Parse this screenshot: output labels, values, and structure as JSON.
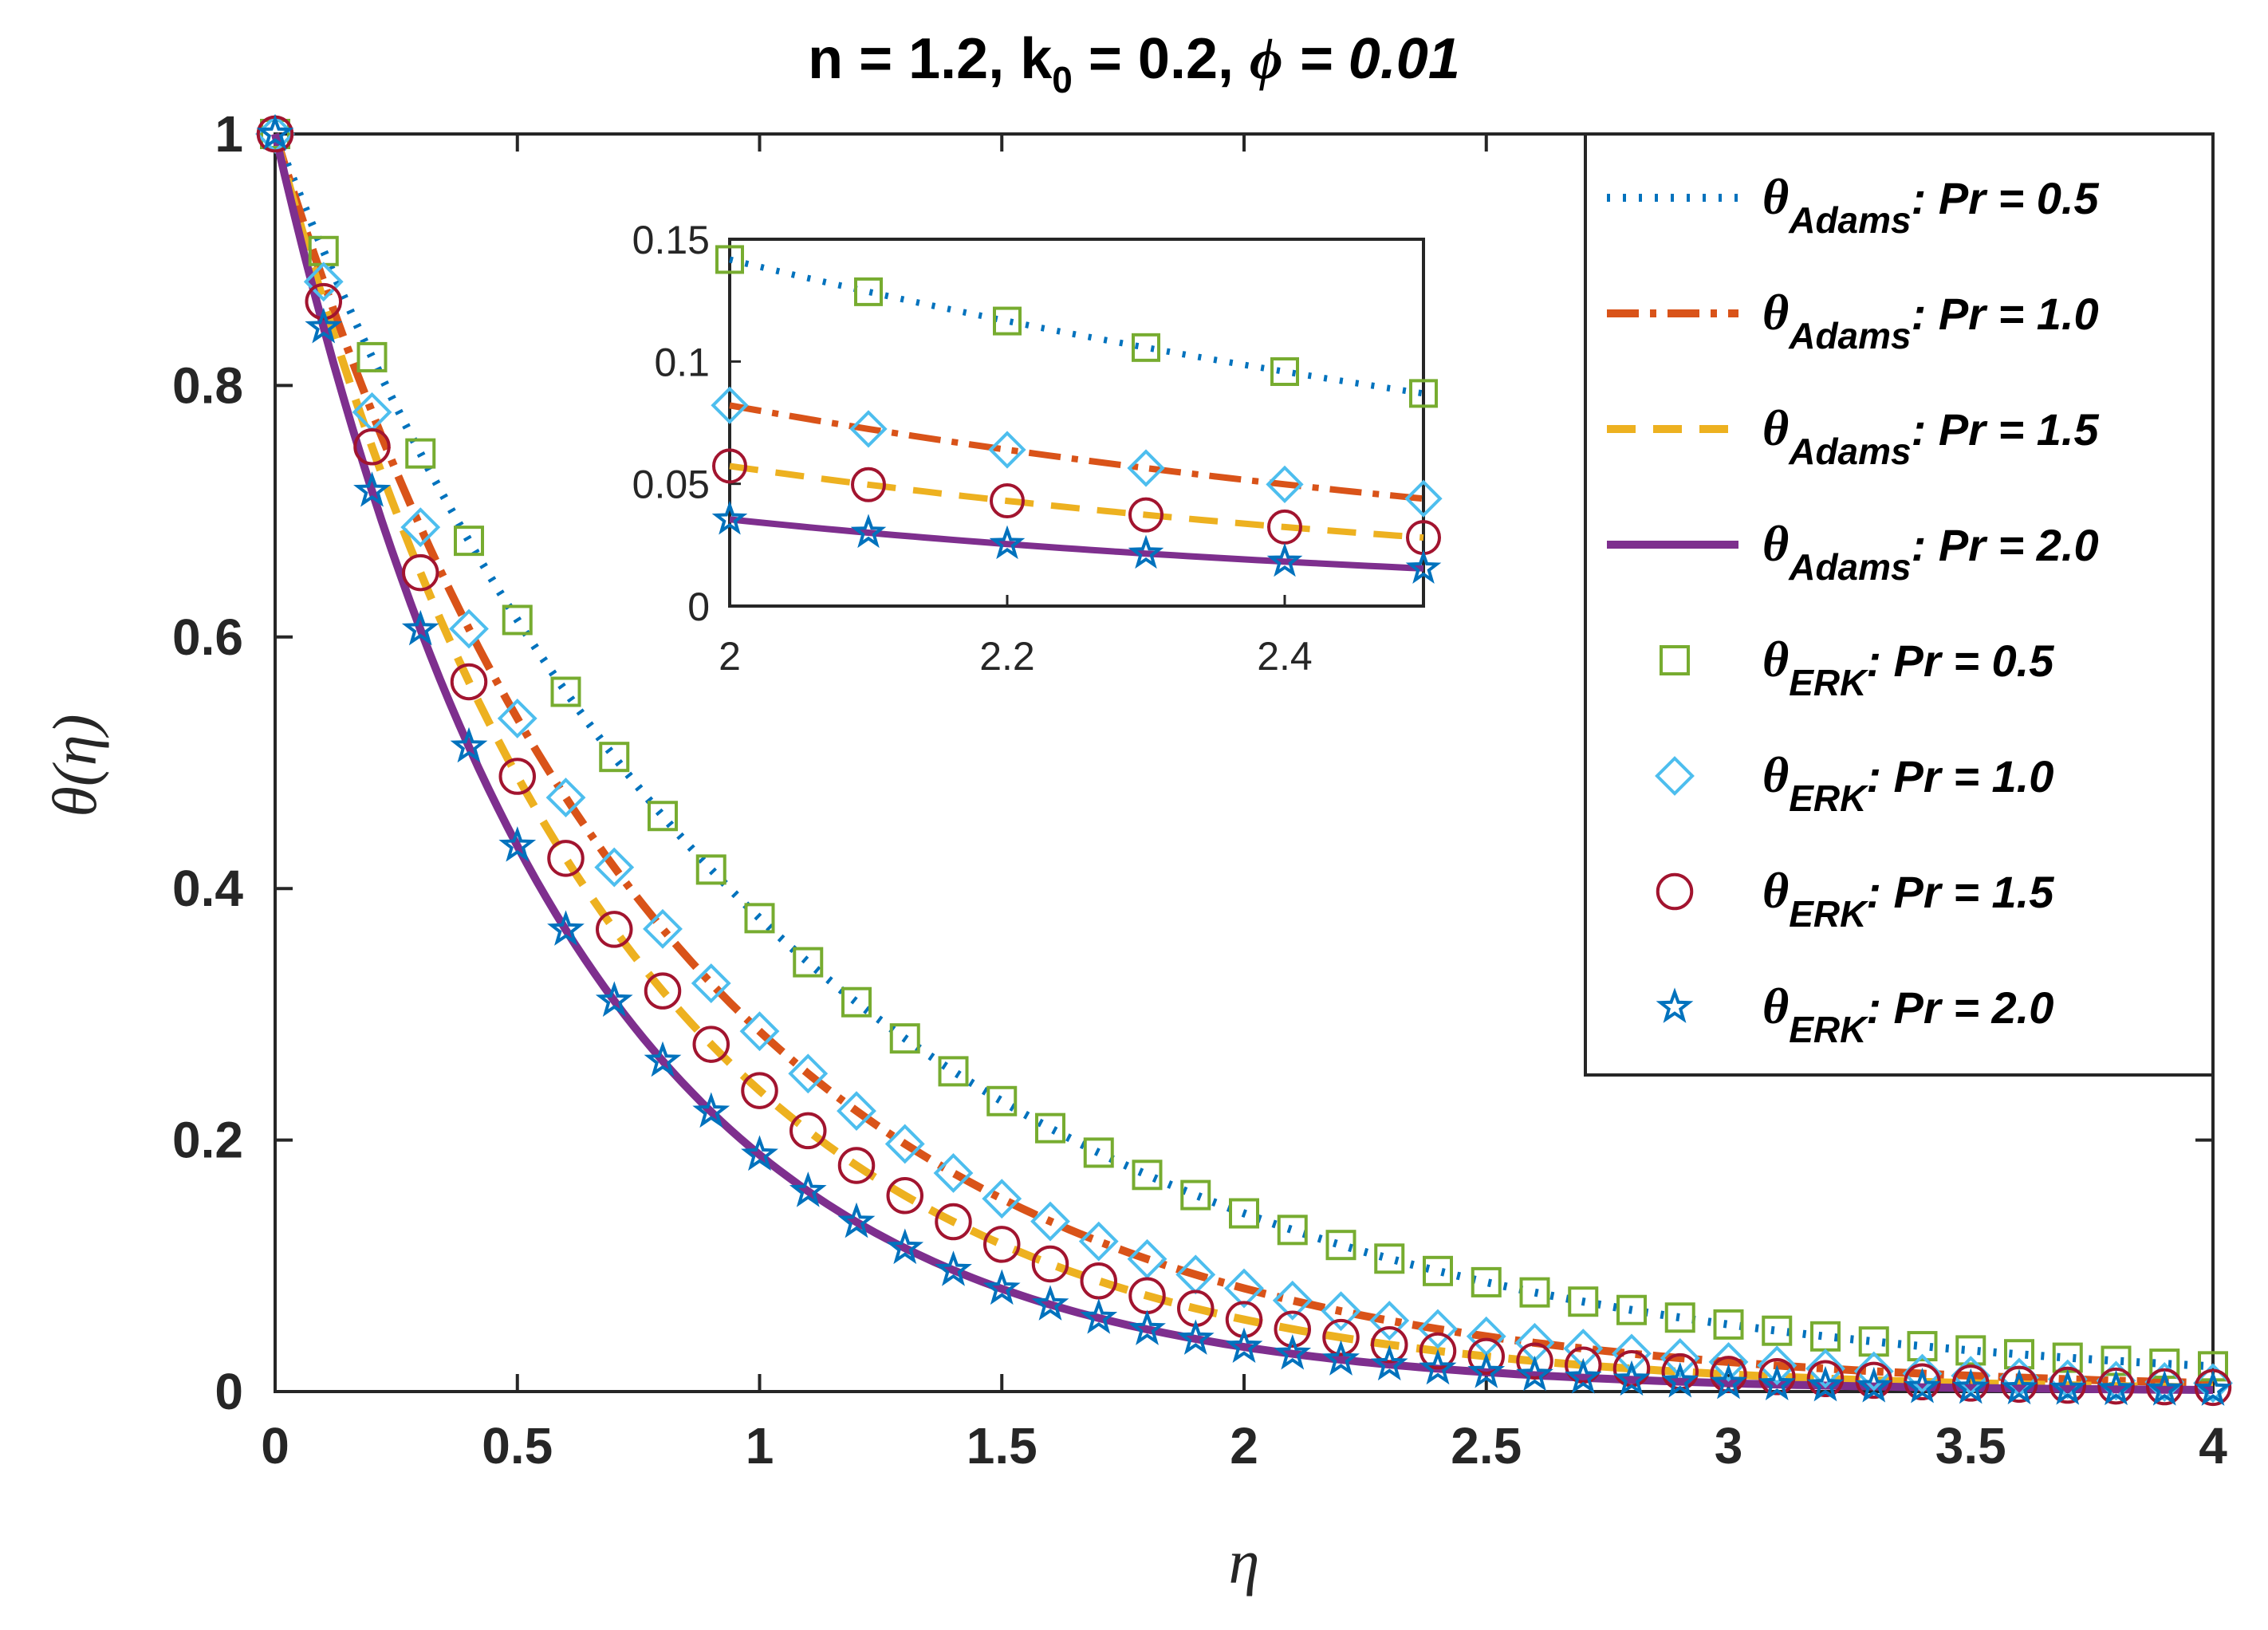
{
  "chart_data": {
    "type": "line",
    "title": "n = 1.2, k₀ = 0.2, ϕ = 0.01",
    "title_parts": {
      "n": "n = 1.2, k",
      "k_sub": "0",
      "k_val": " = 0.2, ",
      "phi": "ϕ",
      "phi_val": " = 0.01"
    },
    "xlabel": "η",
    "ylabel": "θ(η)",
    "xlim": [
      0,
      4
    ],
    "ylim": [
      0,
      1
    ],
    "xticks": [
      "0",
      "0.5",
      "1",
      "1.5",
      "2",
      "2.5",
      "3",
      "3.5",
      "4"
    ],
    "yticks": [
      "0",
      "0.2",
      "0.4",
      "0.6",
      "0.8",
      "1"
    ],
    "x": [
      0,
      0.1,
      0.2,
      0.3,
      0.4,
      0.5,
      0.6,
      0.7,
      0.8,
      0.9,
      1.0,
      1.1,
      1.2,
      1.3,
      1.4,
      1.5,
      1.6,
      1.7,
      1.8,
      1.9,
      2.0,
      2.1,
      2.2,
      2.3,
      2.4,
      2.5,
      2.6,
      2.7,
      2.8,
      2.9,
      3.0,
      3.1,
      3.2,
      3.3,
      3.4,
      3.5,
      3.6,
      3.7,
      3.8,
      3.9,
      4.0
    ],
    "series": [
      {
        "name": "Adams Pr = 0.5",
        "method": "Adams",
        "pr": "Pr = 0.5",
        "color": "#0072BD",
        "dash": "4,16",
        "width": 10,
        "decay": 0.977,
        "scale": 1.0
      },
      {
        "name": "Adams Pr = 1.0",
        "method": "Adams",
        "pr": "Pr = 1.0",
        "color": "#D95319",
        "dash": "40,14,8,14",
        "width": 10,
        "decay": 1.25,
        "scale": 1.0
      },
      {
        "name": "Adams Pr = 1.5",
        "method": "Adams",
        "pr": "Pr = 1.5",
        "color": "#EDB120",
        "dash": "36,22",
        "width": 10,
        "decay": 1.43,
        "scale": 1.0
      },
      {
        "name": "Adams Pr = 2.0",
        "method": "Adams",
        "pr": "Pr = 2.0",
        "color": "#7E2F8E",
        "dash": "",
        "width": 10,
        "decay": 1.67,
        "scale": 1.0
      },
      {
        "name": "ERK Pr = 0.5",
        "method": "ERK",
        "pr": "Pr = 0.5",
        "color": "#77AC30",
        "marker": "square",
        "decay": 0.977
      },
      {
        "name": "ERK Pr = 1.0",
        "method": "ERK",
        "pr": "Pr = 1.0",
        "color": "#4DBEEE",
        "marker": "diamond",
        "decay": 1.25
      },
      {
        "name": "ERK Pr = 1.5",
        "method": "ERK",
        "pr": "Pr = 1.5",
        "color": "#A2142F",
        "marker": "circle",
        "decay": 1.43
      },
      {
        "name": "ERK Pr = 2.0",
        "method": "ERK",
        "pr": "Pr = 2.0",
        "color": "#0072BD",
        "marker": "star",
        "decay": 1.67
      }
    ],
    "inset": {
      "xlim": [
        2,
        2.5
      ],
      "ylim": [
        0,
        0.15
      ],
      "xticks": [
        "2",
        "2.2",
        "2.4"
      ],
      "yticks": [
        "0",
        "0.05",
        "0.1",
        "0.15"
      ]
    },
    "legend": {
      "position": "top-right",
      "theta": "θ",
      "sub_adams": "Adams",
      "sub_erk": "ERK"
    }
  }
}
